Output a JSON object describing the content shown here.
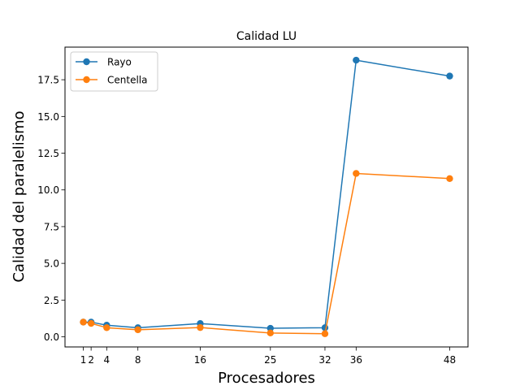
{
  "chart_data": {
    "type": "line",
    "title": "Calidad LU",
    "xlabel": "Procesadores",
    "ylabel": "Calidad del paralelismo",
    "x": [
      1,
      2,
      4,
      8,
      16,
      25,
      32,
      36,
      48
    ],
    "xticks": [
      "1",
      "2",
      "4",
      "8",
      "16",
      "25",
      "32",
      "36",
      "48"
    ],
    "yticks": [
      "0.0",
      "2.5",
      "5.0",
      "7.5",
      "10.0",
      "12.5",
      "15.0",
      "17.5"
    ],
    "xlim": [
      -1.35,
      50.35
    ],
    "ylim": [
      -0.69,
      19.72
    ],
    "grid": false,
    "legend_position": "top-left",
    "series": [
      {
        "name": "Rayo",
        "color": "#1f77b4",
        "values": [
          1.0,
          1.0,
          0.79,
          0.62,
          0.9,
          0.58,
          0.62,
          18.83,
          17.75
        ]
      },
      {
        "name": "Centella",
        "color": "#ff7f0e",
        "values": [
          1.0,
          0.91,
          0.62,
          0.48,
          0.63,
          0.26,
          0.21,
          11.12,
          10.77
        ]
      }
    ]
  }
}
